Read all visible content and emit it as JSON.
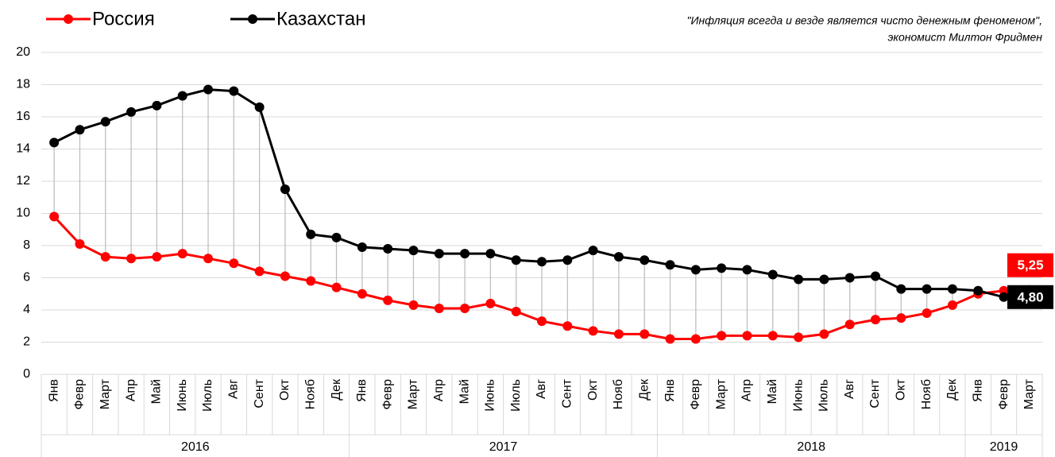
{
  "chart_data": {
    "type": "line",
    "quote": [
      "\"Инфляция всегда и везде является чисто денежным феноменом\",",
      "экономист Милтон Фридмен"
    ],
    "categories": [
      "Янв",
      "Февр",
      "Март",
      "Апр",
      "Май",
      "Июнь",
      "Июль",
      "Авг",
      "Сент",
      "Окт",
      "Нояб",
      "Дек",
      "Янв",
      "Февр",
      "Март",
      "Апр",
      "Май",
      "Июнь",
      "Июль",
      "Авг",
      "Сент",
      "Окт",
      "Нояб",
      "Дек",
      "Янв",
      "Февр",
      "Март",
      "Апр",
      "Май",
      "Июнь",
      "Июль",
      "Авг",
      "Сент",
      "Окт",
      "Нояб",
      "Дек",
      "Янв",
      "Февр",
      "Март"
    ],
    "groups": [
      {
        "label": "2016",
        "count": 12
      },
      {
        "label": "2017",
        "count": 12
      },
      {
        "label": "2018",
        "count": 12
      },
      {
        "label": "2019",
        "count": 3
      }
    ],
    "series": [
      {
        "name": "Россия",
        "color": "#ff0000",
        "values": [
          9.8,
          8.1,
          7.3,
          7.2,
          7.3,
          7.5,
          7.2,
          6.9,
          6.4,
          6.1,
          5.8,
          5.4,
          5.0,
          4.6,
          4.3,
          4.1,
          4.1,
          4.4,
          3.9,
          3.3,
          3.0,
          2.7,
          2.5,
          2.5,
          2.2,
          2.2,
          2.4,
          2.4,
          2.4,
          2.3,
          2.5,
          3.1,
          3.4,
          3.5,
          3.8,
          4.3,
          5.0,
          5.2,
          5.25
        ],
        "value_labels": [
          null,
          null,
          null,
          null,
          null,
          null,
          null,
          null,
          null,
          null,
          null,
          null,
          null,
          null,
          null,
          null,
          null,
          null,
          null,
          null,
          null,
          null,
          null,
          null,
          null,
          null,
          null,
          null,
          null,
          null,
          null,
          null,
          null,
          null,
          null,
          null,
          null,
          null,
          "5,25"
        ]
      },
      {
        "name": "Казахстан",
        "color": "#000000",
        "values": [
          14.4,
          15.2,
          15.7,
          16.3,
          16.7,
          17.3,
          17.7,
          17.6,
          16.6,
          11.5,
          8.7,
          8.5,
          7.9,
          7.8,
          7.7,
          7.5,
          7.5,
          7.5,
          7.1,
          7.0,
          7.1,
          7.7,
          7.3,
          7.1,
          6.8,
          6.5,
          6.6,
          6.5,
          6.2,
          5.9,
          5.9,
          6.0,
          6.1,
          5.3,
          5.3,
          5.3,
          5.2,
          4.8,
          4.8
        ],
        "value_labels": [
          null,
          null,
          null,
          null,
          null,
          null,
          null,
          null,
          null,
          null,
          null,
          null,
          null,
          null,
          null,
          null,
          null,
          null,
          null,
          null,
          null,
          null,
          null,
          null,
          null,
          null,
          null,
          null,
          null,
          null,
          null,
          null,
          null,
          null,
          null,
          null,
          null,
          null,
          "4,80"
        ]
      }
    ],
    "ylim": [
      0,
      20
    ],
    "yticks": [
      0,
      2,
      4,
      6,
      8,
      10,
      12,
      14,
      16,
      18,
      20
    ],
    "grid": true,
    "drop_lines": true
  }
}
